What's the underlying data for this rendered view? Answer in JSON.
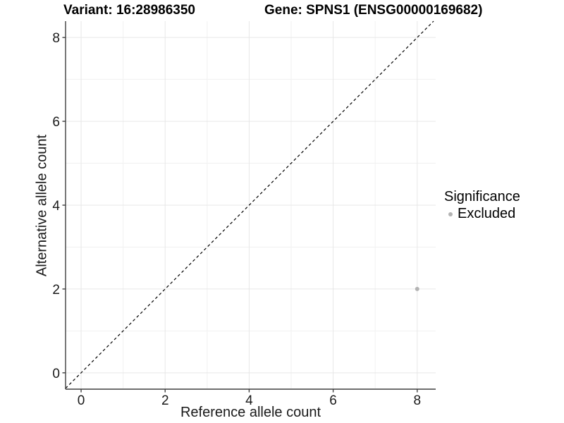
{
  "chart_data": {
    "type": "scatter",
    "title_left": "Variant: 16:28986350",
    "title_right": "Gene: SPNS1 (ENSG00000169682)",
    "xlabel": "Reference allele count",
    "ylabel": "Alternative allele count",
    "xlim": [
      -0.37,
      8.44
    ],
    "ylim": [
      -0.39,
      8.39
    ],
    "x_ticks": [
      0,
      2,
      4,
      6,
      8
    ],
    "y_ticks": [
      0,
      2,
      4,
      6,
      8
    ],
    "x_minor_ticks": [
      1,
      3,
      5,
      7
    ],
    "y_minor_ticks": [
      1,
      3,
      5,
      7
    ],
    "grid": "major and minor, light grey on white",
    "legend_position": "right, middle",
    "legend": {
      "title": "Significance",
      "items": [
        {
          "label": "Excluded",
          "color": "#b3b3b3",
          "marker": "circle"
        }
      ]
    },
    "series": [
      {
        "name": "Excluded",
        "color": "#b3b3b3",
        "marker_radius": 3,
        "points": [
          {
            "x": 8,
            "y": 2
          }
        ]
      }
    ],
    "reference_line": {
      "kind": "identity y=x",
      "style": "dashed",
      "color": "#000000"
    },
    "colors": {
      "background": "#ffffff",
      "grid_major": "#e7e7e7",
      "grid_minor": "#f1f1f1",
      "axis_line": "#3f3f3f",
      "tick_text": "#1a1a1a",
      "point": "#b3b3b3"
    }
  }
}
